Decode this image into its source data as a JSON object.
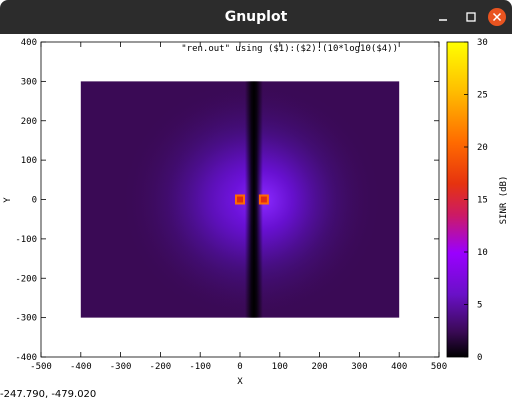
{
  "window": {
    "title": "Gnuplot",
    "controls": [
      "minimize-icon",
      "maximize-icon",
      "close-icon"
    ]
  },
  "colors": {
    "titlebar": "#2c2c2c",
    "close_button": "#e95420",
    "palette": [
      "#000000",
      "#3a0a55",
      "#6a10c8",
      "#9a00ff",
      "#cc1a66",
      "#e6330f",
      "#ff6a00",
      "#ffc000",
      "#ffff00"
    ]
  },
  "chart_data": {
    "type": "heatmap",
    "key_label": "\"ren.out\" using ($1):($2):(10*log10($4))",
    "xlabel": "X",
    "ylabel": "Y",
    "cblabel": "SINR (dB)",
    "xlim": [
      -500,
      500
    ],
    "ylim": [
      -400,
      400
    ],
    "cbrange": [
      0,
      30
    ],
    "x_ticks": [
      "-500",
      "-400",
      "-300",
      "-200",
      "-100",
      "0",
      "100",
      "200",
      "300",
      "400",
      "500"
    ],
    "y_ticks": [
      "400",
      "300",
      "200",
      "100",
      "0",
      "-100",
      "-200",
      "-300",
      "-400"
    ],
    "cb_ticks": [
      "30",
      "25",
      "20",
      "15",
      "10",
      "5",
      "0"
    ],
    "data_extent": {
      "x": [
        -400,
        400
      ],
      "y": [
        -300,
        300
      ]
    },
    "hotspots": [
      {
        "x": 0,
        "y": 0,
        "value": 15
      },
      {
        "x": 60,
        "y": 0,
        "value": 15
      }
    ],
    "null_line_x": 35,
    "colorbox": "right"
  },
  "status": {
    "coordinates": "-247.790, -479.020"
  }
}
